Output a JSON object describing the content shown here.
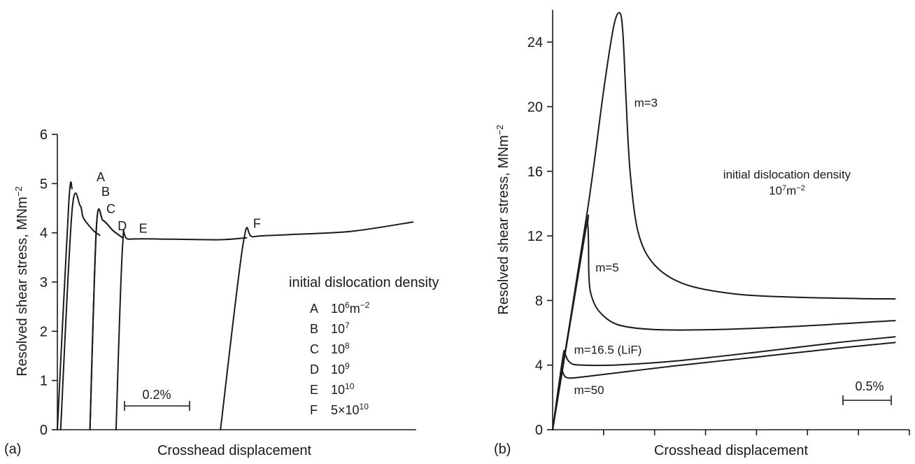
{
  "chart_data": [
    {
      "panel": "(a)",
      "type": "line",
      "xlabel": "Crosshead displacement",
      "ylabel": "Resolved shear stress, MNm",
      "ylabel_exp": "−2",
      "ylim": [
        0,
        6
      ],
      "yticks": [
        "0",
        "1",
        "2",
        "3",
        "4",
        "5",
        "6"
      ],
      "scale_bar": {
        "label": "0.2%",
        "value_percent": 0.2
      },
      "legend": {
        "title": "initial dislocation density",
        "entries": [
          {
            "key": "A",
            "base": "10",
            "exp": "6",
            "unit": "m",
            "unit_exp": "−2"
          },
          {
            "key": "B",
            "base": "10",
            "exp": "7",
            "unit": "",
            "unit_exp": ""
          },
          {
            "key": "C",
            "base": "10",
            "exp": "8",
            "unit": "",
            "unit_exp": ""
          },
          {
            "key": "D",
            "base": "10",
            "exp": "9",
            "unit": "",
            "unit_exp": ""
          },
          {
            "key": "E",
            "base": "10",
            "exp": "10",
            "unit": "",
            "unit_exp": ""
          },
          {
            "key": "F",
            "base": "5×10",
            "exp": "10",
            "unit": "",
            "unit_exp": ""
          }
        ]
      },
      "series": [
        {
          "name": "A",
          "points": [
            [
              0.0,
              0.0
            ],
            [
              0.035,
              4.6
            ],
            [
              0.045,
              4.9
            ]
          ]
        },
        {
          "name": "B",
          "points": [
            [
              0.01,
              0.0
            ],
            [
              0.045,
              4.45
            ],
            [
              0.07,
              4.55
            ],
            [
              0.08,
              4.3
            ],
            [
              0.11,
              4.05
            ],
            [
              0.13,
              3.95
            ]
          ]
        },
        {
          "name": "C",
          "points": [
            [
              0.1,
              0.0
            ],
            [
              0.12,
              4.15
            ],
            [
              0.14,
              4.25
            ],
            [
              0.17,
              4.05
            ],
            [
              0.2,
              3.9
            ]
          ]
        },
        {
          "name": "D",
          "points": [
            [
              0.1,
              0.0
            ],
            [
              0.12,
              4.15
            ],
            [
              0.14,
              4.25
            ],
            [
              0.17,
              4.05
            ],
            [
              0.2,
              3.9
            ]
          ]
        },
        {
          "name": "E",
          "points": [
            [
              0.18,
              0.0
            ],
            [
              0.2,
              3.75
            ],
            [
              0.22,
              3.87
            ],
            [
              0.35,
              3.87
            ],
            [
              0.5,
              3.86
            ],
            [
              0.58,
              3.9
            ]
          ]
        },
        {
          "name": "F",
          "points": [
            [
              0.5,
              0.0
            ],
            [
              0.57,
              3.8
            ],
            [
              0.6,
              3.92
            ],
            [
              0.7,
              3.96
            ],
            [
              0.9,
              4.03
            ],
            [
              1.09,
              4.22
            ]
          ]
        }
      ],
      "labels": [
        {
          "text": "A",
          "x": 0.12,
          "y": 5.05
        },
        {
          "text": "B",
          "x": 0.135,
          "y": 4.75
        },
        {
          "text": "C",
          "x": 0.15,
          "y": 4.4
        },
        {
          "text": "D",
          "x": 0.185,
          "y": 4.05
        },
        {
          "text": "E",
          "x": 0.25,
          "y": 4.0
        },
        {
          "text": "F",
          "x": 0.6,
          "y": 4.1
        }
      ]
    },
    {
      "panel": "(b)",
      "type": "line",
      "xlabel": "Crosshead displacement",
      "ylabel": "Resolved shear stress, MNm",
      "ylabel_exp": "−2",
      "ylim": [
        0,
        26
      ],
      "yticks": [
        "0",
        "4",
        "8",
        "12",
        "16",
        "20",
        "24"
      ],
      "scale_bar": {
        "label": "0.5%",
        "value_percent": 0.5
      },
      "annotation": {
        "line1": "initial dislocation density",
        "line2_base": "10",
        "line2_exp": "7",
        "line2_unit": "m",
        "line2_unit_exp": "−2"
      },
      "series": [
        {
          "name": "m=3",
          "points": [
            [
              0.0,
              0.0
            ],
            [
              0.17,
              13.5
            ],
            [
              0.25,
              21
            ],
            [
              0.3,
              25
            ],
            [
              0.33,
              25.8
            ],
            [
              0.345,
              24.5
            ],
            [
              0.36,
              20.5
            ],
            [
              0.38,
              16
            ],
            [
              0.42,
              12.2
            ],
            [
              0.5,
              10.2
            ],
            [
              0.65,
              9.0
            ],
            [
              0.9,
              8.4
            ],
            [
              1.2,
              8.2
            ],
            [
              1.5,
              8.12
            ],
            [
              1.68,
              8.1
            ]
          ]
        },
        {
          "name": "m=5",
          "points": [
            [
              0.0,
              0.0
            ],
            [
              0.16,
              12.2
            ],
            [
              0.172,
              12.7
            ],
            [
              0.176,
              11.5
            ],
            [
              0.178,
              9.5
            ],
            [
              0.19,
              8.3
            ],
            [
              0.23,
              7.3
            ],
            [
              0.32,
              6.5
            ],
            [
              0.5,
              6.2
            ],
            [
              0.8,
              6.2
            ],
            [
              1.2,
              6.4
            ],
            [
              1.6,
              6.7
            ],
            [
              1.68,
              6.75
            ]
          ]
        },
        {
          "name": "m=16.5 (LiF)",
          "points": [
            [
              0.0,
              0.0
            ],
            [
              0.05,
              4.5
            ],
            [
              0.06,
              4.7
            ],
            [
              0.075,
              4.3
            ],
            [
              0.1,
              4.05
            ],
            [
              0.15,
              4.0
            ],
            [
              0.3,
              4.0
            ],
            [
              0.6,
              4.25
            ],
            [
              1.0,
              4.8
            ],
            [
              1.4,
              5.4
            ],
            [
              1.68,
              5.75
            ]
          ]
        },
        {
          "name": "m=50",
          "points": [
            [
              0.0,
              0.0
            ],
            [
              0.04,
              3.5
            ],
            [
              0.05,
              3.55
            ],
            [
              0.06,
              3.3
            ],
            [
              0.09,
              3.2
            ],
            [
              0.2,
              3.35
            ],
            [
              0.6,
              3.95
            ],
            [
              1.0,
              4.5
            ],
            [
              1.4,
              5.05
            ],
            [
              1.68,
              5.4
            ]
          ]
        }
      ],
      "labels": [
        {
          "text": "m=3",
          "x": 0.4,
          "y": 20.0
        },
        {
          "text": "m=5",
          "x": 0.21,
          "y": 9.8
        },
        {
          "text": "m=16.5 (LiF)",
          "x": 0.105,
          "y": 4.7
        },
        {
          "text": "m=50",
          "x": 0.105,
          "y": 2.2
        }
      ]
    }
  ]
}
